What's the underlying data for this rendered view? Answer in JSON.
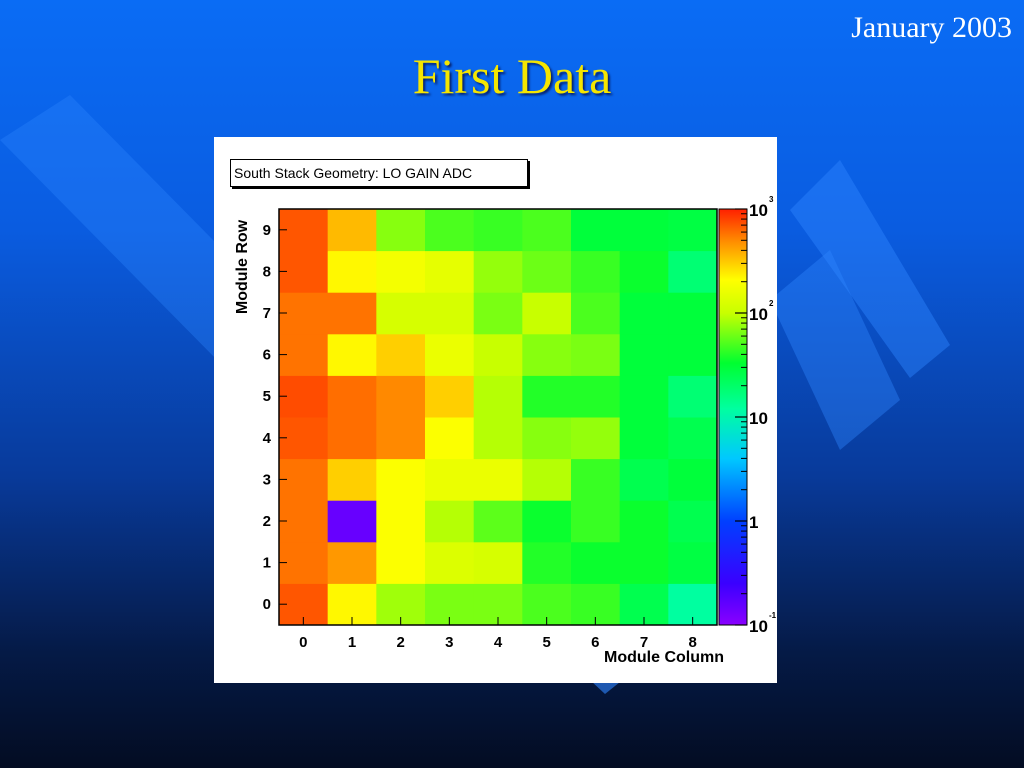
{
  "slide": {
    "date": "January 2003",
    "title": "First Data"
  },
  "chart_data": {
    "type": "heatmap",
    "title": "South Stack Geometry: LO GAIN ADC",
    "xlabel": "Module Column",
    "ylabel": "Module Row",
    "x_categories": [
      "0",
      "1",
      "2",
      "3",
      "4",
      "5",
      "6",
      "7",
      "8"
    ],
    "y_categories": [
      "0",
      "1",
      "2",
      "3",
      "4",
      "5",
      "6",
      "7",
      "8",
      "9"
    ],
    "z_scale": "log",
    "z_range": [
      0.1,
      1000
    ],
    "colorbar_ticks": [
      {
        "base": "10",
        "exp": "3",
        "value": 1000
      },
      {
        "base": "10",
        "exp": "2",
        "value": 100
      },
      {
        "base": "10",
        "exp": "",
        "value": 10
      },
      {
        "base": "1",
        "exp": "",
        "value": 1
      },
      {
        "base": "10",
        "exp": "-1",
        "value": 0.1
      }
    ],
    "rows": [
      {
        "row": "0",
        "values": [
          700,
          220,
          80,
          65,
          65,
          50,
          45,
          25,
          12
        ]
      },
      {
        "row": "1",
        "values": [
          580,
          450,
          200,
          130,
          120,
          40,
          35,
          35,
          28
        ]
      },
      {
        "row": "2",
        "values": [
          580,
          0.15,
          200,
          90,
          55,
          35,
          45,
          35,
          25
        ]
      },
      {
        "row": "3",
        "values": [
          580,
          300,
          200,
          160,
          160,
          90,
          45,
          25,
          30
        ]
      },
      {
        "row": "4",
        "values": [
          700,
          600,
          500,
          200,
          90,
          70,
          75,
          30,
          25
        ]
      },
      {
        "row": "5",
        "values": [
          750,
          600,
          500,
          300,
          90,
          40,
          40,
          30,
          18
        ]
      },
      {
        "row": "6",
        "values": [
          580,
          220,
          300,
          160,
          100,
          70,
          65,
          30,
          30
        ]
      },
      {
        "row": "7",
        "values": [
          580,
          580,
          120,
          120,
          65,
          100,
          50,
          30,
          30
        ]
      },
      {
        "row": "8",
        "values": [
          700,
          220,
          180,
          150,
          75,
          60,
          45,
          35,
          18
        ]
      },
      {
        "row": "9",
        "values": [
          700,
          350,
          70,
          50,
          45,
          50,
          30,
          30,
          28
        ]
      }
    ]
  }
}
